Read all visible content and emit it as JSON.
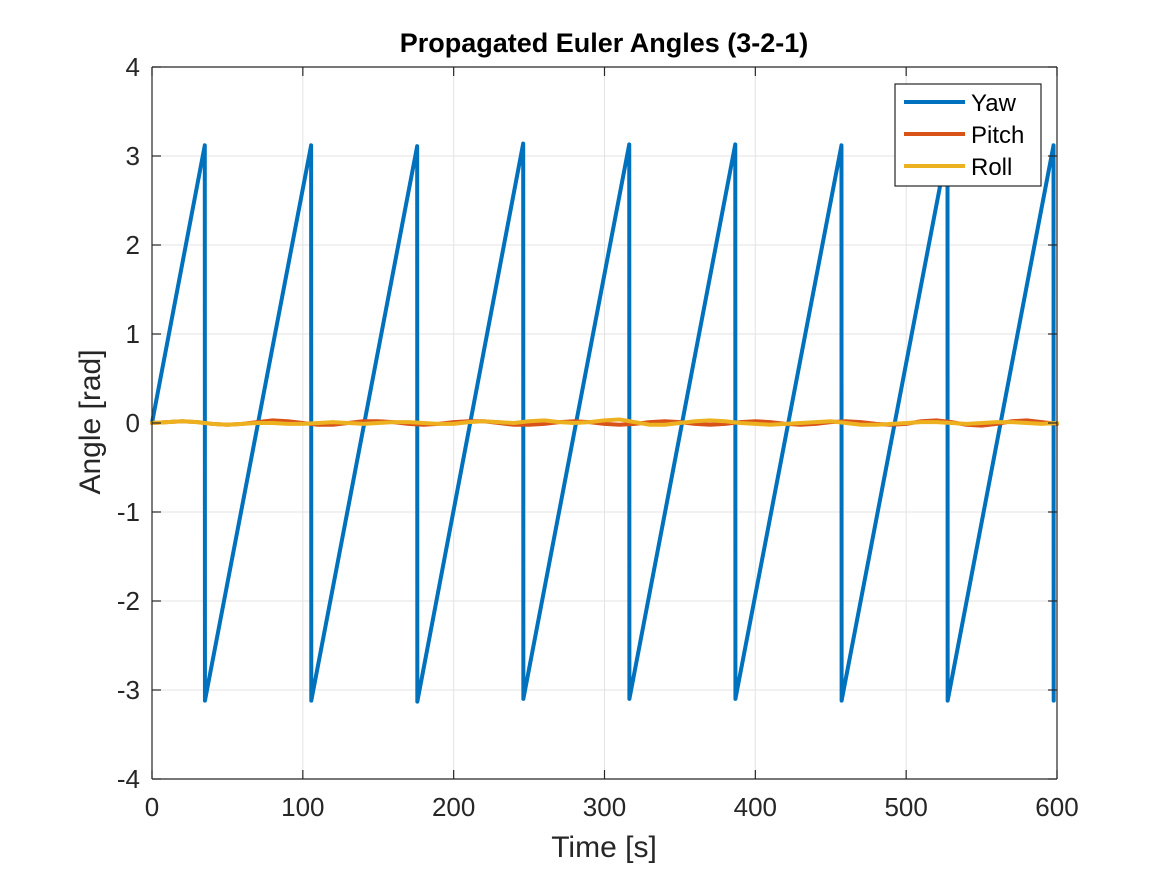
{
  "chart_data": {
    "type": "line",
    "title": "Propagated Euler Angles (3-2-1)",
    "xlabel": "Time [s]",
    "ylabel": "Angle [rad]",
    "xlim": [
      0,
      600
    ],
    "ylim": [
      -4,
      4
    ],
    "xticks": [
      0,
      100,
      200,
      300,
      400,
      500,
      600
    ],
    "xtick_labels": [
      "0",
      "100",
      "200",
      "300",
      "400",
      "500",
      "600"
    ],
    "yticks": [
      -4,
      -3,
      -2,
      -1,
      0,
      1,
      2,
      3,
      4
    ],
    "ytick_labels": [
      "-4",
      "-3",
      "-2",
      "-1",
      "0",
      "1",
      "2",
      "3",
      "4"
    ],
    "grid": true,
    "legend_position": "top-right",
    "series": [
      {
        "name": "Yaw",
        "color": "#0072BD",
        "x": [
          0,
          35,
          35.1,
          105.5,
          105.6,
          175.8,
          175.9,
          246.1,
          246.2,
          316.4,
          316.5,
          386.7,
          386.8,
          457.1,
          457.2,
          527.4,
          527.5,
          597.7,
          597.8
        ],
        "y": [
          0,
          3.12,
          -3.12,
          3.12,
          -3.12,
          3.11,
          -3.13,
          3.14,
          -3.1,
          3.13,
          -3.1,
          3.13,
          -3.1,
          3.12,
          -3.12,
          3.1,
          -3.12,
          3.12,
          -3.12
        ]
      },
      {
        "name": "Pitch",
        "color": "#D95319",
        "x": [
          0,
          10,
          20,
          30,
          40,
          50,
          60,
          70,
          80,
          90,
          100,
          110,
          120,
          130,
          140,
          150,
          160,
          170,
          180,
          190,
          200,
          210,
          220,
          230,
          240,
          250,
          260,
          270,
          280,
          290,
          300,
          310,
          320,
          330,
          340,
          350,
          360,
          370,
          380,
          390,
          400,
          410,
          420,
          430,
          440,
          450,
          460,
          470,
          480,
          490,
          500,
          510,
          520,
          530,
          540,
          550,
          560,
          570,
          580,
          590,
          600
        ],
        "y": [
          0,
          0.01,
          0.02,
          0.01,
          -0.01,
          -0.02,
          -0.01,
          0.01,
          0.03,
          0.02,
          0,
          -0.02,
          -0.02,
          0,
          0.02,
          0.02,
          0.01,
          -0.01,
          -0.02,
          -0.01,
          0.01,
          0.02,
          0.02,
          0,
          -0.02,
          -0.02,
          -0.01,
          0.01,
          0.02,
          0.01,
          -0.01,
          -0.02,
          -0.01,
          0.01,
          0.02,
          0.01,
          -0.01,
          -0.02,
          -0.01,
          0.01,
          0.02,
          0.01,
          -0.01,
          -0.02,
          -0.01,
          0.01,
          0.02,
          0.01,
          -0.01,
          -0.02,
          -0.01,
          0.02,
          0.03,
          0.01,
          -0.02,
          -0.03,
          -0.01,
          0.02,
          0.03,
          0.01,
          -0.01
        ]
      },
      {
        "name": "Roll",
        "color": "#EDB120",
        "x": [
          0,
          10,
          20,
          30,
          40,
          50,
          60,
          70,
          80,
          90,
          100,
          110,
          120,
          130,
          140,
          150,
          160,
          170,
          180,
          190,
          200,
          210,
          220,
          230,
          240,
          250,
          260,
          270,
          280,
          290,
          300,
          310,
          320,
          330,
          340,
          350,
          360,
          370,
          380,
          390,
          400,
          410,
          420,
          430,
          440,
          450,
          460,
          470,
          480,
          490,
          500,
          510,
          520,
          530,
          540,
          550,
          560,
          570,
          580,
          590,
          600
        ],
        "y": [
          0,
          0.01,
          0.02,
          0.01,
          -0.01,
          -0.02,
          -0.01,
          0,
          0,
          -0.01,
          -0.01,
          0,
          0.01,
          0,
          -0.01,
          0,
          0.01,
          0.01,
          0,
          -0.01,
          -0.01,
          0.01,
          0.02,
          0.01,
          0,
          0.02,
          0.03,
          0.01,
          0,
          0.01,
          0.03,
          0.04,
          0.01,
          -0.02,
          -0.02,
          0,
          0.02,
          0.03,
          0.02,
          0,
          -0.01,
          -0.02,
          -0.01,
          0,
          0.01,
          0.02,
          0,
          -0.02,
          -0.02,
          -0.01,
          0,
          0.01,
          0.01,
          0,
          -0.01,
          0,
          0.01,
          0.01,
          0,
          -0.01,
          0
        ]
      }
    ]
  }
}
